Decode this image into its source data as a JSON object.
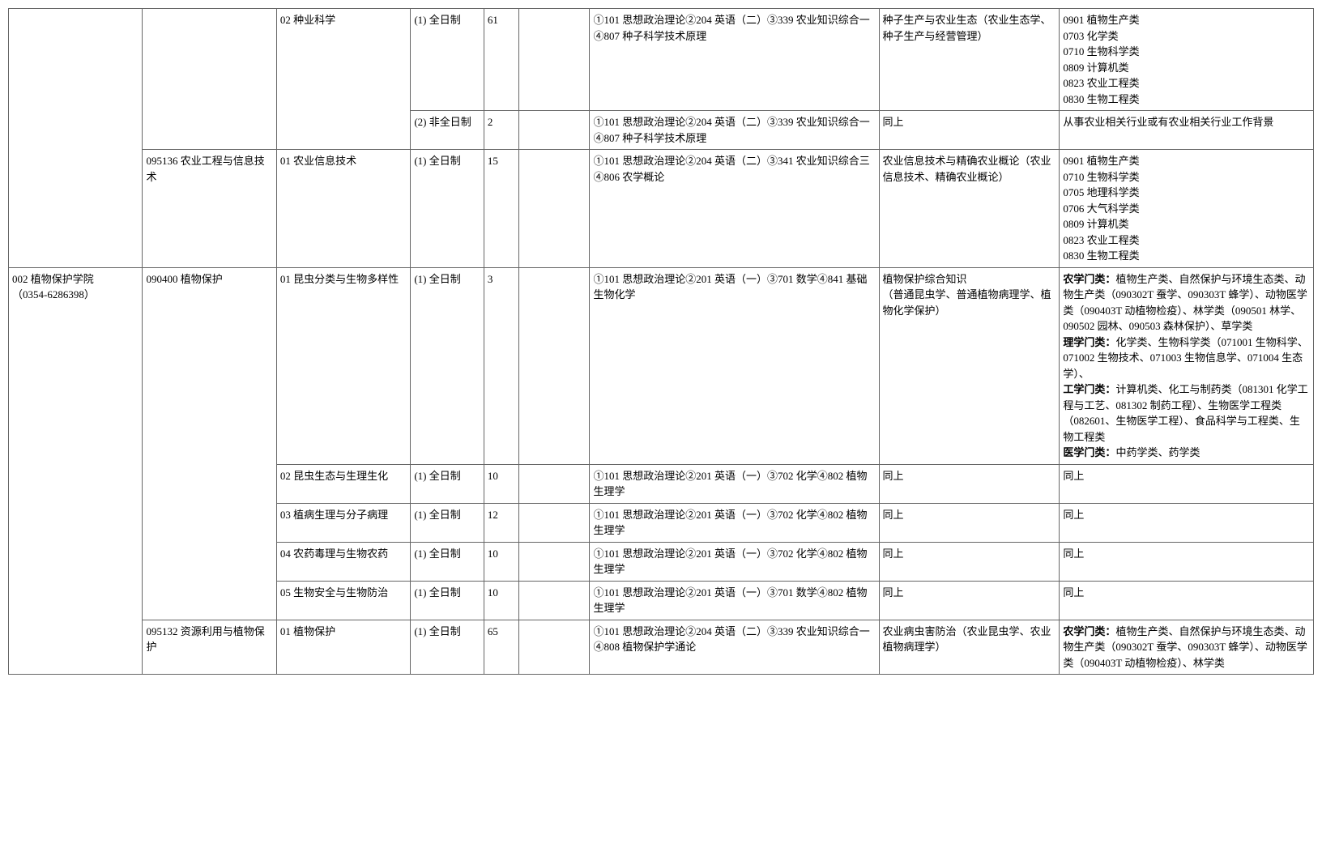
{
  "rows": [
    {
      "col1": "",
      "col2": "",
      "col3": "02 种业科学",
      "col4": "(1) 全日制",
      "col5": "61",
      "col6": "",
      "col7": "①101 思想政治理论②204 英语（二）③339 农业知识综合一④807 种子科学技术原理",
      "col8": "种子生产与农业生态（农业生态学、种子生产与经营管理）",
      "col9": "0901 植物生产类\n0703 化学类\n0710 生物科学类\n0809 计算机类\n0823 农业工程类\n0830 生物工程类"
    },
    {
      "col4": "(2) 非全日制",
      "col5": "2",
      "col6": "",
      "col7": "①101 思想政治理论②204 英语（二）③339 农业知识综合一④807 种子科学技术原理",
      "col8": "同上",
      "col9": "从事农业相关行业或有农业相关行业工作背景"
    },
    {
      "col2": "095136 农业工程与信息技术",
      "col3": "01 农业信息技术",
      "col4": "(1) 全日制",
      "col5": "15",
      "col6": "",
      "col7": "①101 思想政治理论②204 英语（二）③341 农业知识综合三④806 农学概论",
      "col8": "农业信息技术与精确农业概论（农业信息技术、精确农业概论）",
      "col9": "0901 植物生产类\n0710 生物科学类\n0705 地理科学类\n0706 大气科学类\n0809 计算机类\n0823 农业工程类\n0830 生物工程类"
    },
    {
      "col1": "002 植物保护学院\n（0354-6286398）",
      "col2": "090400 植物保护",
      "col3": "01 昆虫分类与生物多样性",
      "col4": "(1) 全日制",
      "col5": "3",
      "col6": "",
      "col7": "①101 思想政治理论②201 英语（一）③701 数学④841 基础生物化学",
      "col8": "植物保护综合知识\n（普通昆虫学、普通植物病理学、植物化学保护）",
      "col9_parts": [
        {
          "bold": true,
          "text": "农学门类："
        },
        {
          "bold": false,
          "text": "植物生产类、自然保护与环境生态类、动物生产类（090302T 蚕学、090303T 蜂学）、动物医学类（090403T 动植物检疫）、林学类（090501 林学、090502 园林、090503 森林保护）、草学类\n"
        },
        {
          "bold": true,
          "text": "理学门类："
        },
        {
          "bold": false,
          "text": "化学类、生物科学类（071001 生物科学、071002 生物技术、071003 生物信息学、071004 生态学）、\n"
        },
        {
          "bold": true,
          "text": "工学门类："
        },
        {
          "bold": false,
          "text": "计算机类、化工与制药类（081301 化学工程与工艺、081302 制药工程）、生物医学工程类（082601、生物医学工程）、食品科学与工程类、生物工程类\n"
        },
        {
          "bold": true,
          "text": "医学门类："
        },
        {
          "bold": false,
          "text": "中药学类、药学类"
        }
      ]
    },
    {
      "col3": "02 昆虫生态与生理生化",
      "col4": "(1) 全日制",
      "col5": "10",
      "col6": "",
      "col7": "①101 思想政治理论②201 英语（一）③702 化学④802 植物生理学",
      "col8": "同上",
      "col9": "同上"
    },
    {
      "col3": "03 植病生理与分子病理",
      "col4": "(1) 全日制",
      "col5": "12",
      "col6": "",
      "col7": "①101 思想政治理论②201 英语（一）③702 化学④802 植物生理学",
      "col8": "同上",
      "col9": "同上"
    },
    {
      "col3": "04 农药毒理与生物农药",
      "col4": "(1) 全日制",
      "col5": "10",
      "col6": "",
      "col7": "①101 思想政治理论②201 英语（一）③702 化学④802 植物生理学",
      "col8": "同上",
      "col9": "同上"
    },
    {
      "col3": "05 生物安全与生物防治",
      "col4": "(1) 全日制",
      "col5": "10",
      "col6": "",
      "col7": "①101 思想政治理论②201 英语（一）③701 数学④802 植物生理学",
      "col8": "同上",
      "col9": "同上"
    },
    {
      "col2": "095132 资源利用与植物保护",
      "col3": "01 植物保护",
      "col4": "(1) 全日制",
      "col5": "65",
      "col6": "",
      "col7": "①101 思想政治理论②204 英语（二）③339 农业知识综合一④808 植物保护学通论",
      "col8": "农业病虫害防治（农业昆虫学、农业植物病理学）",
      "col9_parts": [
        {
          "bold": true,
          "text": "农学门类："
        },
        {
          "bold": false,
          "text": "植物生产类、自然保护与环境生态类、动物生产类（090302T 蚕学、090303T 蜂学）、动物医学类（090403T 动植物检疫）、林学类"
        }
      ]
    }
  ]
}
